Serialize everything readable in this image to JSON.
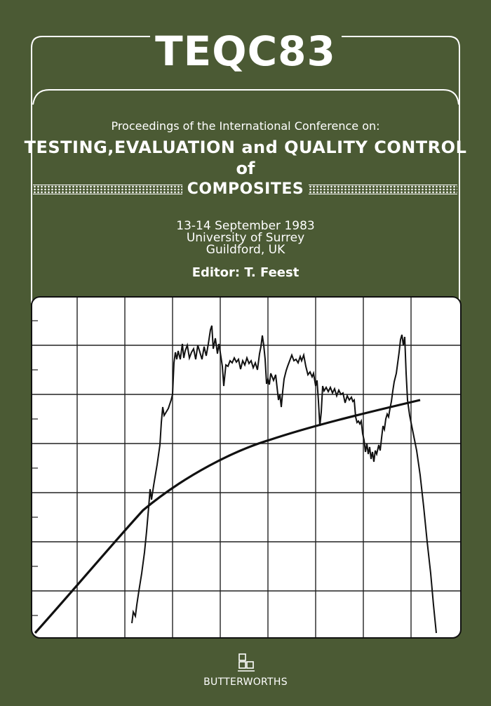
{
  "cover": {
    "title": "TEQC83",
    "proceedings": "Proceedings of the International Conference on:",
    "main_title_line1": "TESTING,EVALUATION and QUALITY CONTROL",
    "main_title_line2": "of",
    "main_title_line3": "COMPOSITES",
    "date": "13-14 September 1983",
    "venue": "University of Surrey",
    "city": "Guildford, UK",
    "editor": "Editor: T. Feest",
    "publisher": "BUTTERWORTHS"
  },
  "colors": {
    "background": "#4b5a34",
    "foreground": "#ffffff",
    "plot_ink": "#111111"
  },
  "icons": {
    "publisher_logo": "butterworths-squares-logo-icon"
  }
}
